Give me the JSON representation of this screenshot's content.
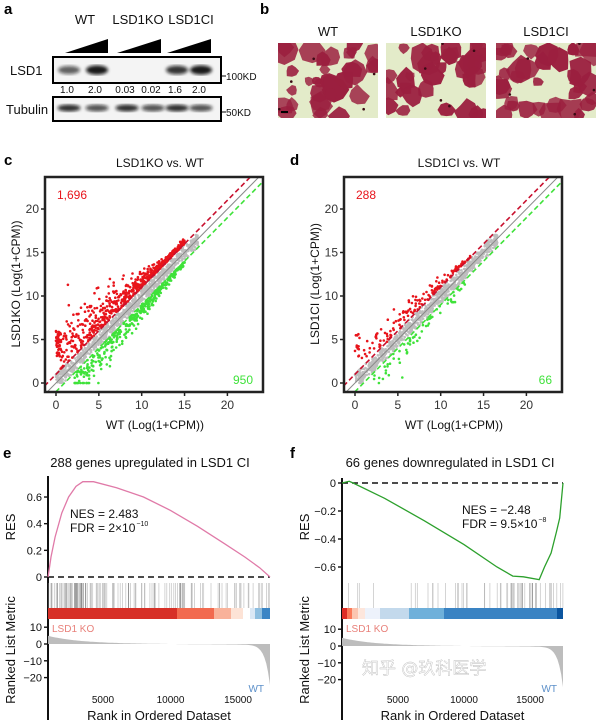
{
  "panel_labels": {
    "a": "a",
    "b": "b",
    "c": "c",
    "d": "d",
    "e": "e",
    "f": "f"
  },
  "western_blot": {
    "groups": [
      "WT",
      "LSD1KO",
      "LSD1CI"
    ],
    "row_labels": {
      "lsd1": "LSD1",
      "tubulin": "Tubulin"
    },
    "markers": {
      "lsd1": "100KD",
      "tubulin": "50KD"
    },
    "quantification": [
      "1.0",
      "2.0",
      "0.03",
      "0.02",
      "1.6",
      "2.0"
    ],
    "lsd1_band_intensity": [
      1.0,
      2.0,
      0.03,
      0.02,
      1.6,
      2.0
    ]
  },
  "micrographs": {
    "titles": [
      "WT",
      "LSD1KO",
      "LSD1CI"
    ],
    "colors": {
      "stain": "#9b1f3f",
      "background": "#e3ebc9"
    }
  },
  "watermark": "知乎 @玖科医学",
  "chart_data": [
    {
      "type": "scatter",
      "title": "LSD1KO vs. WT",
      "xlabel": "WT (Log(1+CPM))",
      "ylabel": "LSD1KO (Log(1+CPM))",
      "xlim": [
        -1.3,
        24.2
      ],
      "ylim": [
        -1,
        23.7
      ],
      "xticks": [
        0,
        5,
        10,
        15,
        20
      ],
      "yticks": [
        0,
        5,
        10,
        15,
        20
      ],
      "grid": false,
      "annotations": {
        "up_count": "1,696",
        "down_count": "950"
      },
      "threshold_offsets": [
        1,
        -1
      ],
      "colors": {
        "up": "#e8141b",
        "down": "#3fe23a",
        "unchanged": "#bdbdbd",
        "up_line": "#c8102e",
        "down_line": "#3fe23a"
      }
    },
    {
      "type": "scatter",
      "title": "LSD1CI vs. WT",
      "xlabel": "WT (Log(1+CPM))",
      "ylabel": "LSD1CI (Log(1+CPM))",
      "xlim": [
        -1.3,
        24.2
      ],
      "ylim": [
        -1,
        23.7
      ],
      "xticks": [
        0,
        5,
        10,
        15,
        20
      ],
      "yticks": [
        0,
        5,
        10,
        15,
        20
      ],
      "grid": false,
      "annotations": {
        "up_count": "288",
        "down_count": "66"
      },
      "threshold_offsets": [
        1,
        -1
      ],
      "colors": {
        "up": "#e8141b",
        "down": "#3fe23a",
        "unchanged": "#bdbdbd",
        "up_line": "#c8102e",
        "down_line": "#3fe23a"
      }
    },
    {
      "type": "line",
      "title": "288 genes upregulated in LSD1 CI",
      "ylabel": "RES",
      "metric_ylabel": "Ranked List Metric",
      "xlabel": "Rank in Ordered Dataset",
      "xticks": [
        5000,
        10000,
        15000
      ],
      "xtick_labels": [
        "5000",
        "10000",
        "15000"
      ],
      "yticks": [
        0,
        0.2,
        0.4,
        0.6
      ],
      "ytick_labels": [
        "0",
        "0.2",
        "0.4",
        "0.6"
      ],
      "metric_yticks": [
        10,
        0,
        -10,
        -20
      ],
      "metric_ytick_labels": [
        "10",
        "0",
        "−10",
        "−20"
      ],
      "curve_color": "#e07aa8",
      "res_curve": [
        [
          930,
          0
        ],
        [
          1150,
          0.15
        ],
        [
          1450,
          0.3
        ],
        [
          1950,
          0.48
        ],
        [
          2450,
          0.6
        ],
        [
          3000,
          0.68
        ],
        [
          3500,
          0.715
        ],
        [
          4300,
          0.715
        ],
        [
          6000,
          0.67
        ],
        [
          8000,
          0.6
        ],
        [
          10000,
          0.5
        ],
        [
          12000,
          0.38
        ],
        [
          14000,
          0.25
        ],
        [
          15500,
          0.15
        ],
        [
          16600,
          0.07
        ],
        [
          17370,
          0
        ]
      ],
      "stats": {
        "nes": "NES = 2.483",
        "fdr": "FDR = 2×10",
        "fdr_exponent": "−10"
      },
      "metric_labels": {
        "positive": "LSD1 KO",
        "negative": "WT"
      },
      "metric_label_colors": {
        "positive": "#e8807a",
        "negative": "#5b8fc9"
      },
      "heat_segments": [
        [
          926,
          10480,
          "#d73027"
        ],
        [
          10480,
          13220,
          "#f26a4f"
        ],
        [
          13220,
          14480,
          "#f9b29a"
        ],
        [
          14480,
          15370,
          "#fde3d6"
        ],
        [
          15370,
          15890,
          "#ffffff"
        ],
        [
          15890,
          16260,
          "#dbe8f5"
        ],
        [
          16260,
          16780,
          "#8fbfe0"
        ],
        [
          16780,
          17370,
          "#3a85c5"
        ]
      ]
    },
    {
      "type": "line",
      "title": "66 genes downregulated in LSD1 CI",
      "ylabel": "RES",
      "metric_ylabel": "Ranked List Metric",
      "xlabel": "Rank in Ordered Dataset",
      "xticks": [
        5000,
        10000,
        15000
      ],
      "xtick_labels": [
        "5000",
        "10000",
        "15000"
      ],
      "yticks": [
        0,
        -0.2,
        -0.4,
        -0.6
      ],
      "ytick_labels": [
        "0",
        "−0.2",
        "−0.4",
        "−0.6"
      ],
      "metric_yticks": [
        10,
        0,
        -10,
        -20
      ],
      "metric_ytick_labels": [
        "10",
        "0",
        "−10",
        "−20"
      ],
      "curve_color": "#2ca02c",
      "res_curve": [
        [
          760,
          0
        ],
        [
          1300,
          0.012
        ],
        [
          1600,
          0
        ],
        [
          4000,
          -0.11
        ],
        [
          7000,
          -0.27
        ],
        [
          10000,
          -0.44
        ],
        [
          12500,
          -0.6
        ],
        [
          13700,
          -0.665
        ],
        [
          14500,
          -0.67
        ],
        [
          15700,
          -0.69
        ],
        [
          16100,
          -0.6
        ],
        [
          16600,
          -0.5
        ],
        [
          17000,
          -0.35
        ],
        [
          17250,
          -0.25
        ],
        [
          17500,
          0
        ]
      ],
      "stats": {
        "nes": "NES = −2.48",
        "fdr": "FDR = 9.5×10",
        "fdr_exponent": "−8"
      },
      "metric_labels": {
        "positive": "LSD1 KO",
        "negative": "WT"
      },
      "metric_label_colors": {
        "positive": "#e8807a",
        "negative": "#5b8fc9"
      },
      "heat_segments": [
        [
          758,
          1136,
          "#de2d26"
        ],
        [
          1136,
          1515,
          "#fb7a5a"
        ],
        [
          1515,
          1970,
          "#fcc5b0"
        ],
        [
          1970,
          2500,
          "#fde6dc"
        ],
        [
          2500,
          3636,
          "#edf2fb"
        ],
        [
          3636,
          5833,
          "#c3d9ec"
        ],
        [
          5833,
          8485,
          "#6fb0da"
        ],
        [
          8485,
          17045,
          "#3a83c3"
        ],
        [
          17045,
          17500,
          "#0b559f"
        ]
      ]
    }
  ]
}
